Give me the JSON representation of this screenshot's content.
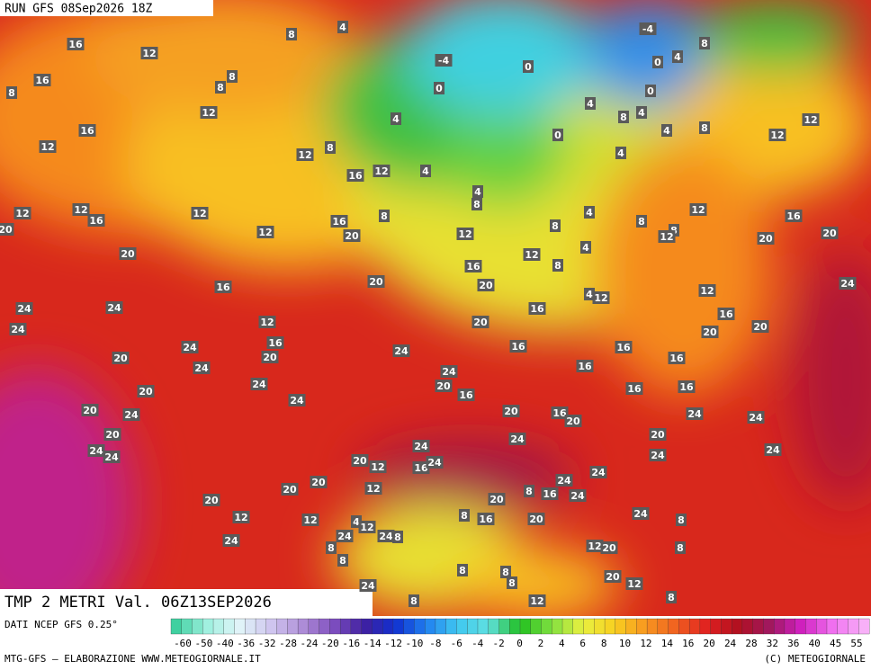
{
  "header": {
    "run": "RUN GFS 08Sep2026 18Z"
  },
  "map": {
    "labels": [
      16,
      12,
      8,
      4,
      16,
      8,
      8,
      12,
      8,
      16,
      12,
      12,
      8,
      16,
      12,
      4,
      4,
      -4,
      0,
      0,
      -4,
      0,
      4,
      8,
      0,
      4,
      8,
      4,
      4,
      8,
      12,
      12,
      0,
      4,
      4,
      8,
      12,
      12,
      16,
      12,
      16,
      8,
      12,
      20,
      12,
      8,
      4,
      8,
      12,
      16,
      8,
      12,
      20,
      20,
      20,
      20,
      12,
      8,
      4,
      16,
      20,
      20,
      16,
      4,
      12,
      12,
      24,
      24,
      24,
      24,
      12,
      16,
      20,
      20,
      16,
      20,
      16,
      24,
      20,
      24,
      16,
      16,
      20,
      24,
      24,
      16,
      16,
      20,
      24,
      24,
      20,
      16,
      16,
      16,
      20,
      24,
      20,
      16,
      20,
      24,
      24,
      20,
      20,
      24,
      24,
      24,
      24,
      24,
      24,
      20,
      12,
      16,
      24,
      24,
      24,
      20,
      20,
      12,
      8,
      16,
      24,
      20,
      20,
      12,
      12,
      8,
      16,
      20,
      24,
      8,
      4,
      12,
      24,
      8,
      24,
      24,
      8,
      12,
      20,
      8,
      8,
      8,
      8,
      8,
      20,
      12,
      24,
      8,
      8,
      12
    ]
  },
  "footer": {
    "title": "TMP 2 METRI Val. 06Z13SEP2026",
    "source": "DATI NCEP GFS 0.25°",
    "credit": "MTG-GFS — ELABORAZIONE WWW.METEOGIORNALE.IT",
    "copyright": "(C) METEOGIORNALE",
    "scale": [
      -60,
      -50,
      -40,
      -36,
      -32,
      -28,
      -24,
      -20,
      -16,
      -14,
      -12,
      -10,
      -8,
      -6,
      -4,
      -2,
      0,
      2,
      4,
      6,
      8,
      10,
      12,
      14,
      16,
      20,
      24,
      28,
      32,
      36,
      40,
      45,
      55
    ]
  }
}
